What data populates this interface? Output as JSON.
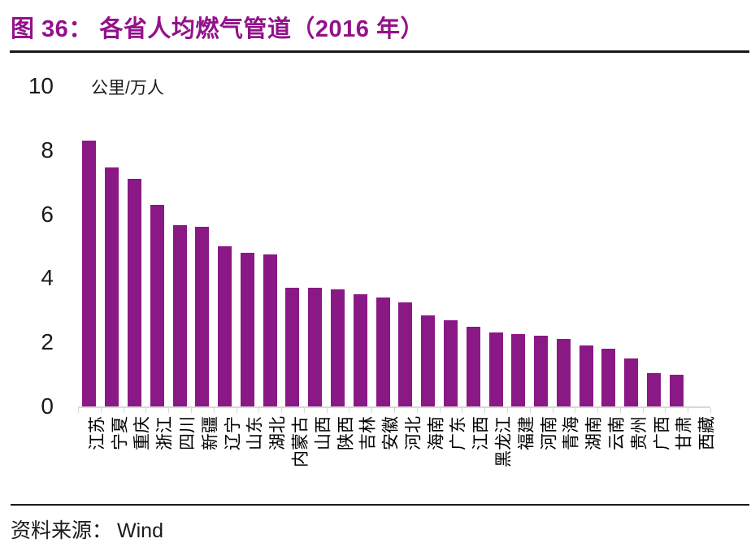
{
  "header": {
    "title": "图 36：  各省人均燃气管道（2016 年）"
  },
  "footer": {
    "source_label": "资料来源：",
    "source_value": "Wind"
  },
  "colors": {
    "accent_title": "#93118B",
    "bar": "#8A1885",
    "axis_gray": "#D8D8D8",
    "text": "#1A1A1A"
  },
  "chart_data": {
    "type": "bar",
    "title": "各省人均燃气管道（2016 年）",
    "unit": "公里/万人",
    "ylabel": "公里/万人",
    "xlabel": "",
    "ylim": [
      0,
      10
    ],
    "yticks": [
      0,
      2,
      4,
      6,
      8,
      10
    ],
    "grid": false,
    "legend": "none",
    "categories": [
      "江苏",
      "宁夏",
      "重庆",
      "浙江",
      "四川",
      "新疆",
      "辽宁",
      "山东",
      "湖北",
      "内蒙古",
      "山西",
      "陕西",
      "吉林",
      "安徽",
      "河北",
      "海南",
      "广东",
      "江西",
      "黑龙江",
      "福建",
      "河南",
      "青海",
      "湖南",
      "云南",
      "贵州",
      "广西",
      "甘肃",
      "西藏"
    ],
    "values": [
      8.3,
      7.45,
      7.1,
      6.3,
      5.65,
      5.6,
      5.0,
      4.8,
      4.75,
      3.7,
      3.7,
      3.65,
      3.5,
      3.4,
      3.25,
      2.85,
      2.7,
      2.5,
      2.3,
      2.25,
      2.2,
      2.1,
      1.9,
      1.8,
      1.5,
      1.05,
      1.0,
      0
    ]
  }
}
